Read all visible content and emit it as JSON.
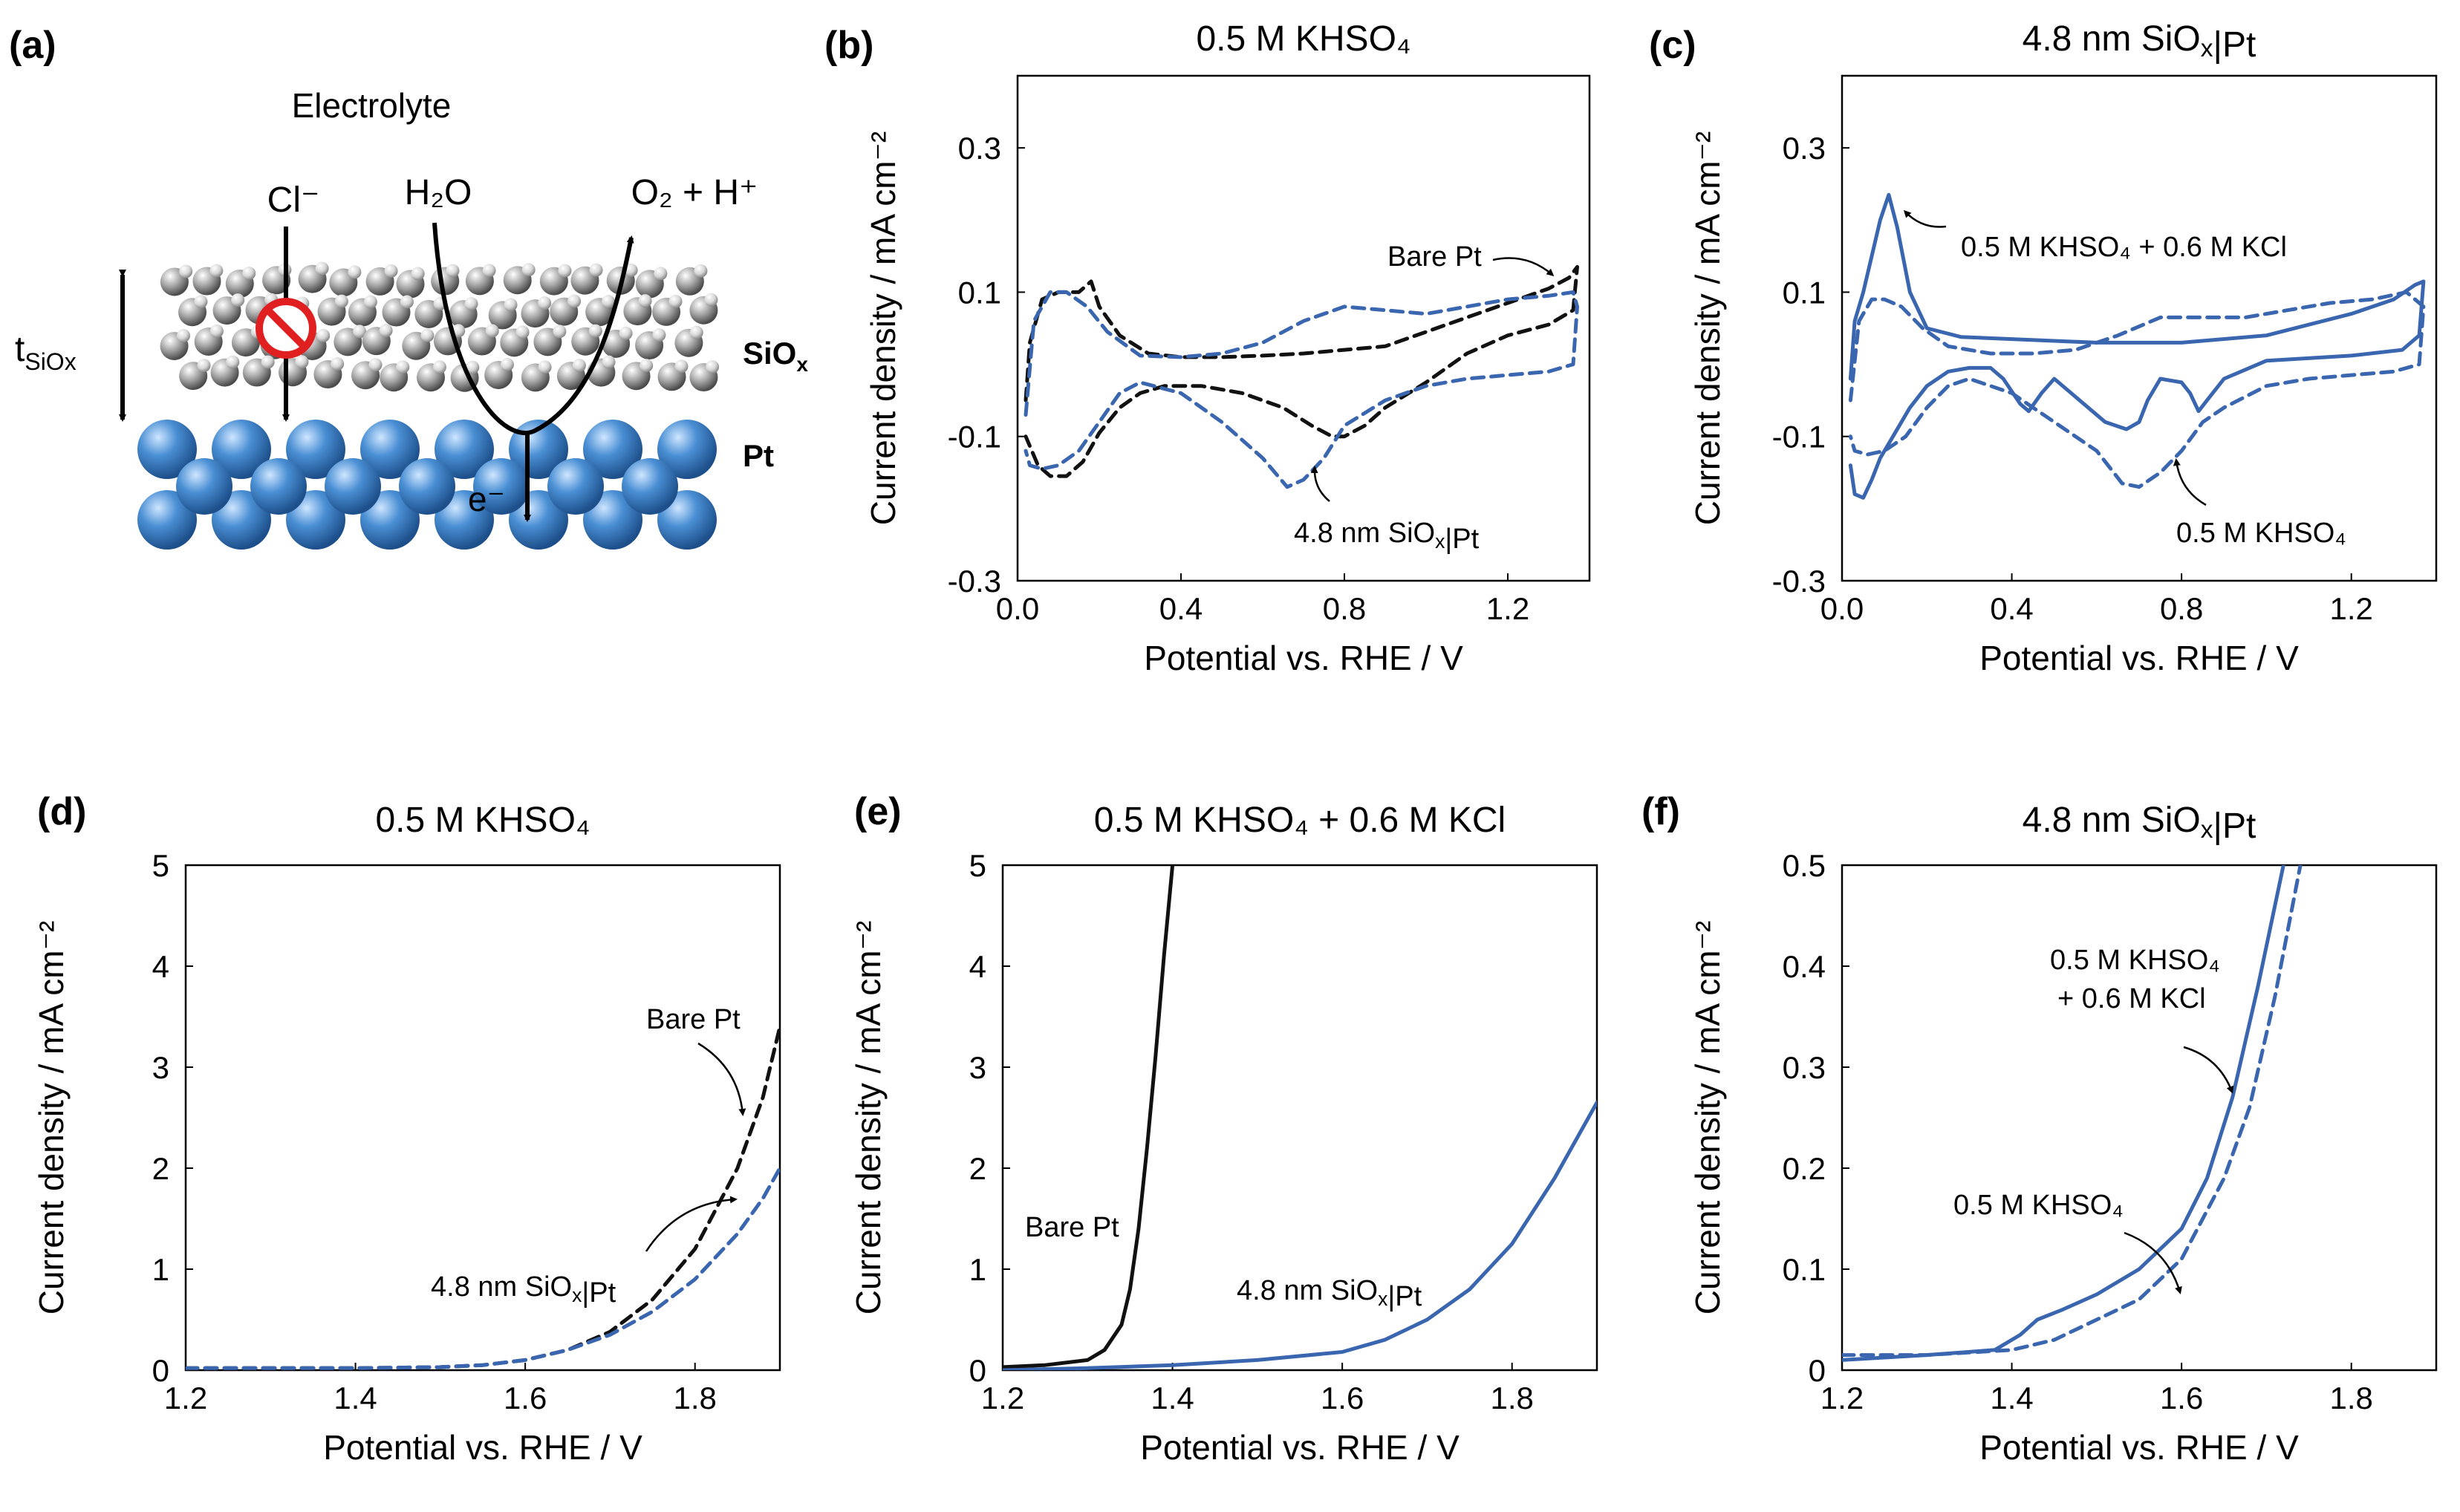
{
  "panel_letters": [
    "(a)",
    "(b)",
    "(c)",
    "(d)",
    "(e)",
    "(f)"
  ],
  "colors": {
    "black_series": "#111111",
    "blue_series": "#3a66b0",
    "pt_sphere": "#4a8fd4",
    "si_sphere": "#9a9a9a",
    "block_icon": "#e02020"
  },
  "schematic": {
    "electrolyte": "Electrolyte",
    "chloride": "Cl⁻",
    "water": "H₂O",
    "products": "O₂ + H⁺",
    "electron": "e⁻",
    "thickness_main": "t",
    "thickness_sub": "SiOx",
    "siox_main": "SiO",
    "siox_sub": "x",
    "pt_label": "Pt"
  },
  "chart_data": [
    {
      "panel": "(b)",
      "type": "line",
      "title": "0.5 M KHSO₄",
      "xlabel": "Potential vs. RHE / V",
      "ylabel": "Current density / mA cm⁻²",
      "xlim": [
        0.0,
        1.4
      ],
      "ylim": [
        -0.3,
        0.4
      ],
      "xticks": [
        "0.0",
        "0.4",
        "0.8",
        "1.2"
      ],
      "yticks": [
        "-0.3",
        "-0.1",
        "0.1",
        "0.3"
      ],
      "grid": false,
      "series": [
        {
          "name": "Bare Pt",
          "color": "#111111",
          "style": "dashed",
          "x": [
            0.02,
            0.03,
            0.06,
            0.1,
            0.15,
            0.18,
            0.2,
            0.25,
            0.32,
            0.4,
            0.5,
            0.6,
            0.7,
            0.8,
            0.9,
            1.0,
            1.1,
            1.2,
            1.3,
            1.35,
            1.37,
            1.36,
            1.3,
            1.2,
            1.1,
            1.0,
            0.9,
            0.85,
            0.8,
            0.77,
            0.72,
            0.65,
            0.55,
            0.45,
            0.36,
            0.3,
            0.25,
            0.2,
            0.16,
            0.12,
            0.08,
            0.05,
            0.02
          ],
          "y": [
            -0.05,
            0.03,
            0.09,
            0.1,
            0.1,
            0.115,
            0.08,
            0.04,
            0.015,
            0.01,
            0.01,
            0.012,
            0.015,
            0.02,
            0.025,
            0.045,
            0.065,
            0.085,
            0.105,
            0.12,
            0.135,
            0.075,
            0.055,
            0.04,
            0.015,
            -0.025,
            -0.06,
            -0.085,
            -0.1,
            -0.1,
            -0.085,
            -0.06,
            -0.04,
            -0.03,
            -0.03,
            -0.04,
            -0.06,
            -0.095,
            -0.135,
            -0.155,
            -0.155,
            -0.14,
            -0.1
          ]
        },
        {
          "name": "4.8 nm SiOx|Pt",
          "color": "#3a66b0",
          "style": "dashed",
          "x": [
            0.02,
            0.04,
            0.08,
            0.12,
            0.17,
            0.22,
            0.3,
            0.4,
            0.5,
            0.6,
            0.7,
            0.8,
            0.9,
            1.0,
            1.1,
            1.2,
            1.3,
            1.36,
            1.37,
            1.36,
            1.3,
            1.2,
            1.1,
            1.0,
            0.9,
            0.8,
            0.75,
            0.7,
            0.66,
            0.6,
            0.5,
            0.4,
            0.3,
            0.25,
            0.2,
            0.15,
            0.1,
            0.06,
            0.03,
            0.02
          ],
          "y": [
            -0.07,
            0.06,
            0.1,
            0.1,
            0.08,
            0.045,
            0.012,
            0.01,
            0.015,
            0.03,
            0.06,
            0.08,
            0.075,
            0.07,
            0.08,
            0.09,
            0.095,
            0.1,
            0.08,
            0.0,
            -0.01,
            -0.015,
            -0.02,
            -0.03,
            -0.05,
            -0.085,
            -0.13,
            -0.16,
            -0.17,
            -0.13,
            -0.08,
            -0.04,
            -0.025,
            -0.04,
            -0.08,
            -0.12,
            -0.14,
            -0.145,
            -0.14,
            -0.12
          ]
        }
      ],
      "annotations": [
        "Bare Pt",
        "4.8 nm SiOx|Pt"
      ]
    },
    {
      "panel": "(c)",
      "type": "line",
      "title": "4.8 nm SiOx|Pt",
      "xlabel": "Potential vs. RHE / V",
      "ylabel": "Current density / mA cm⁻²",
      "xlim": [
        0.0,
        1.4
      ],
      "ylim": [
        -0.3,
        0.4
      ],
      "xticks": [
        "0.0",
        "0.4",
        "0.8",
        "1.2"
      ],
      "yticks": [
        "-0.3",
        "-0.1",
        "0.1",
        "0.3"
      ],
      "grid": false,
      "series": [
        {
          "name": "0.5 M KHSO₄ + 0.6 M KCl",
          "color": "#3a66b0",
          "style": "solid",
          "x": [
            0.02,
            0.03,
            0.05,
            0.07,
            0.09,
            0.11,
            0.13,
            0.16,
            0.2,
            0.28,
            0.4,
            0.6,
            0.8,
            1.0,
            1.2,
            1.3,
            1.35,
            1.37,
            1.36,
            1.32,
            1.2,
            1.0,
            0.9,
            0.86,
            0.84,
            0.82,
            0.8,
            0.75,
            0.72,
            0.7,
            0.67,
            0.62,
            0.5,
            0.47,
            0.44,
            0.42,
            0.38,
            0.35,
            0.3,
            0.25,
            0.2,
            0.16,
            0.12,
            0.09,
            0.07,
            0.05,
            0.03,
            0.02
          ],
          "y": [
            -0.02,
            0.06,
            0.1,
            0.15,
            0.2,
            0.235,
            0.19,
            0.1,
            0.05,
            0.038,
            0.035,
            0.03,
            0.03,
            0.04,
            0.07,
            0.09,
            0.11,
            0.115,
            0.04,
            0.02,
            0.012,
            0.005,
            -0.02,
            -0.05,
            -0.065,
            -0.04,
            -0.025,
            -0.02,
            -0.05,
            -0.08,
            -0.09,
            -0.08,
            -0.02,
            -0.04,
            -0.065,
            -0.055,
            -0.02,
            -0.005,
            -0.005,
            -0.01,
            -0.03,
            -0.06,
            -0.1,
            -0.13,
            -0.16,
            -0.185,
            -0.18,
            -0.14
          ]
        },
        {
          "name": "0.5 M KHSO₄",
          "color": "#3a66b0",
          "style": "dashed",
          "x": [
            0.02,
            0.04,
            0.07,
            0.1,
            0.14,
            0.19,
            0.25,
            0.35,
            0.45,
            0.55,
            0.65,
            0.75,
            0.85,
            0.95,
            1.05,
            1.15,
            1.25,
            1.33,
            1.37,
            1.36,
            1.3,
            1.2,
            1.1,
            1.0,
            0.9,
            0.85,
            0.8,
            0.75,
            0.7,
            0.66,
            0.6,
            0.5,
            0.4,
            0.3,
            0.25,
            0.2,
            0.15,
            0.1,
            0.06,
            0.03,
            0.02
          ],
          "y": [
            -0.05,
            0.06,
            0.09,
            0.09,
            0.08,
            0.05,
            0.025,
            0.015,
            0.015,
            0.02,
            0.04,
            0.065,
            0.065,
            0.065,
            0.075,
            0.085,
            0.09,
            0.1,
            0.08,
            0.0,
            -0.01,
            -0.015,
            -0.02,
            -0.03,
            -0.06,
            -0.08,
            -0.12,
            -0.15,
            -0.17,
            -0.165,
            -0.12,
            -0.08,
            -0.04,
            -0.02,
            -0.03,
            -0.06,
            -0.1,
            -0.12,
            -0.125,
            -0.12,
            -0.1
          ]
        }
      ],
      "annotations": [
        "0.5 M KHSO₄ + 0.6 M KCl",
        "0.5 M KHSO₄"
      ]
    },
    {
      "panel": "(d)",
      "type": "line",
      "title": "0.5 M KHSO₄",
      "xlabel": "Potential vs. RHE / V",
      "ylabel": "Current density / mA cm⁻²",
      "xlim": [
        1.2,
        1.9
      ],
      "ylim": [
        0,
        5
      ],
      "xticks": [
        "1.2",
        "1.4",
        "1.6",
        "1.8"
      ],
      "yticks": [
        "0",
        "1",
        "2",
        "3",
        "4",
        "5"
      ],
      "grid": false,
      "series": [
        {
          "name": "Bare Pt",
          "color": "#111111",
          "style": "dashed",
          "x": [
            1.2,
            1.3,
            1.4,
            1.5,
            1.55,
            1.6,
            1.65,
            1.7,
            1.75,
            1.8,
            1.85,
            1.88,
            1.9
          ],
          "y": [
            0.02,
            0.02,
            0.02,
            0.03,
            0.05,
            0.1,
            0.2,
            0.38,
            0.7,
            1.2,
            2.0,
            2.7,
            3.4
          ]
        },
        {
          "name": "4.8 nm SiOx|Pt",
          "color": "#3a66b0",
          "style": "dashed",
          "x": [
            1.2,
            1.3,
            1.4,
            1.5,
            1.55,
            1.6,
            1.65,
            1.7,
            1.75,
            1.8,
            1.85,
            1.88,
            1.9
          ],
          "y": [
            0.02,
            0.02,
            0.02,
            0.03,
            0.05,
            0.1,
            0.2,
            0.35,
            0.58,
            0.9,
            1.35,
            1.7,
            2.0
          ]
        }
      ],
      "annotations": [
        "Bare Pt",
        "4.8 nm SiOx|Pt"
      ]
    },
    {
      "panel": "(e)",
      "type": "line",
      "title": "0.5 M KHSO₄ + 0.6 M KCl",
      "xlabel": "Potential vs. RHE / V",
      "ylabel": "Current density / mA cm⁻²",
      "xlim": [
        1.2,
        1.9
      ],
      "ylim": [
        0,
        5
      ],
      "xticks": [
        "1.2",
        "1.4",
        "1.6",
        "1.8"
      ],
      "yticks": [
        "0",
        "1",
        "2",
        "3",
        "4",
        "5"
      ],
      "grid": false,
      "series": [
        {
          "name": "Bare Pt",
          "color": "#111111",
          "style": "solid",
          "x": [
            1.2,
            1.25,
            1.3,
            1.32,
            1.34,
            1.35,
            1.36,
            1.37,
            1.38,
            1.39,
            1.4
          ],
          "y": [
            0.03,
            0.05,
            0.1,
            0.2,
            0.45,
            0.8,
            1.4,
            2.2,
            3.1,
            4.1,
            5.0
          ]
        },
        {
          "name": "4.8 nm SiOx|Pt",
          "color": "#3a66b0",
          "style": "solid",
          "x": [
            1.2,
            1.3,
            1.4,
            1.5,
            1.6,
            1.65,
            1.7,
            1.75,
            1.8,
            1.85,
            1.9
          ],
          "y": [
            0.0,
            0.02,
            0.05,
            0.1,
            0.18,
            0.3,
            0.5,
            0.8,
            1.25,
            1.9,
            2.65
          ]
        }
      ],
      "annotations": [
        "Bare Pt",
        "4.8 nm SiOx|Pt"
      ]
    },
    {
      "panel": "(f)",
      "type": "line",
      "title": "4.8 nm SiOx|Pt",
      "xlabel": "Potential vs. RHE / V",
      "ylabel": "Current density / mA cm⁻²",
      "xlim": [
        1.2,
        1.9
      ],
      "ylim": [
        0,
        0.5
      ],
      "xticks": [
        "1.2",
        "1.4",
        "1.6",
        "1.8"
      ],
      "yticks": [
        "0",
        "0.1",
        "0.2",
        "0.3",
        "0.4",
        "0.5"
      ],
      "grid": false,
      "series": [
        {
          "name": "0.5 M KHSO₄ + 0.6 M KCl",
          "color": "#3a66b0",
          "style": "solid",
          "x": [
            1.2,
            1.3,
            1.38,
            1.41,
            1.43,
            1.46,
            1.5,
            1.55,
            1.6,
            1.63,
            1.66,
            1.69,
            1.72
          ],
          "y": [
            0.01,
            0.015,
            0.02,
            0.035,
            0.05,
            0.06,
            0.075,
            0.1,
            0.14,
            0.19,
            0.27,
            0.38,
            0.5
          ]
        },
        {
          "name": "0.5 M KHSO₄",
          "color": "#3a66b0",
          "style": "dashed",
          "x": [
            1.2,
            1.3,
            1.4,
            1.45,
            1.5,
            1.55,
            1.6,
            1.65,
            1.68,
            1.71,
            1.74
          ],
          "y": [
            0.015,
            0.015,
            0.02,
            0.03,
            0.05,
            0.07,
            0.11,
            0.19,
            0.26,
            0.37,
            0.5
          ]
        }
      ],
      "annotations": [
        "0.5 M KHSO₄ + 0.6 M KCl",
        "0.5 M KHSO₄"
      ]
    }
  ]
}
